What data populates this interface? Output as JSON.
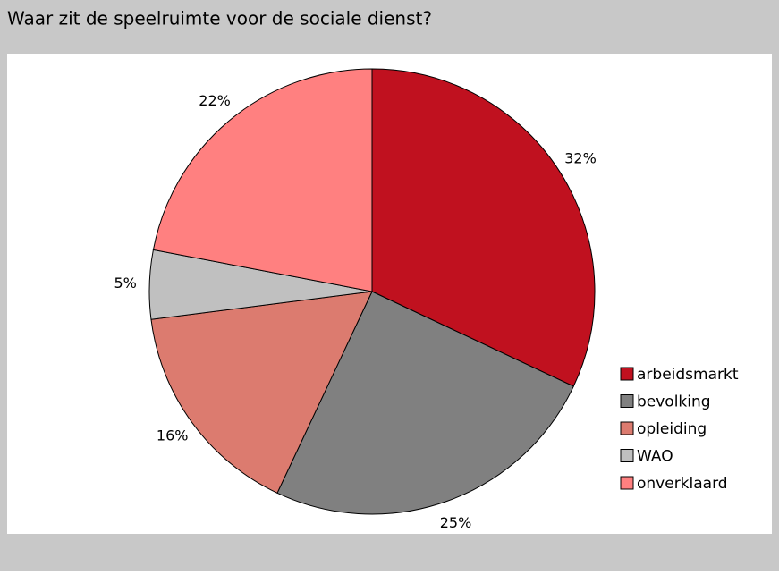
{
  "chart_data": {
    "type": "pie",
    "title": "Waar zit de speelruimte voor de sociale dienst?",
    "categories": [
      "arbeidsmarkt",
      "bevolking",
      "opleiding",
      "WAO",
      "onverklaard"
    ],
    "values": [
      32,
      25,
      16,
      5,
      22
    ],
    "value_labels": [
      "32%",
      "25%",
      "16%",
      "5%",
      "22%"
    ],
    "colors": [
      "#c0111f",
      "#808080",
      "#dc7b6f",
      "#c0c0c0",
      "#ff8080"
    ],
    "legend": "right"
  }
}
